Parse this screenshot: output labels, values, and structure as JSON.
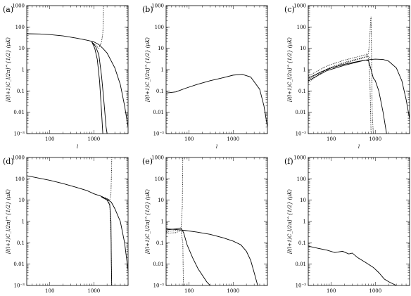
{
  "figure": {
    "panel_tags": [
      "(a)",
      "(b)",
      "(c)",
      "(d)",
      "(e)",
      "(f)"
    ]
  },
  "axes": {
    "ylabel": "[l(l+1)C_l/2π]^{1/2} (μK)",
    "xlabel": "l",
    "y_ticks": [
      "10⁻³",
      "0.01",
      "0.1",
      "1",
      "10",
      "100",
      "1000"
    ],
    "x_ticks": [
      "100",
      "1000"
    ]
  },
  "chart_data": [
    {
      "panel": "(a)",
      "type": "line",
      "xscale": "log",
      "yscale": "log",
      "xlim": [
        30,
        6000
      ],
      "ylim": [
        0.001,
        1000
      ],
      "grid": false,
      "series": [
        {
          "style": "solid",
          "x": [
            30,
            60,
            100,
            200,
            400,
            700,
            1000,
            1300,
            1600,
            2000,
            3000,
            4000,
            5000,
            6000
          ],
          "y": [
            48,
            47,
            44,
            38,
            30,
            24,
            20,
            15,
            10,
            6,
            1.2,
            0.2,
            0.02,
            0.002
          ]
        },
        {
          "style": "solid",
          "x": [
            900,
            1100,
            1300,
            1500,
            1700,
            1900,
            2000
          ],
          "y": [
            20,
            12,
            5,
            0.5,
            0.03,
            0.002,
            0.001
          ]
        },
        {
          "style": "solid",
          "x": [
            900,
            1050,
            1200,
            1350,
            1500,
            1600
          ],
          "y": [
            20,
            10,
            3,
            0.3,
            0.01,
            0.001
          ]
        },
        {
          "style": "dotted",
          "x": [
            900,
            1100,
            1300,
            1500,
            1600,
            1640,
            1660
          ],
          "y": [
            20,
            14,
            10,
            20,
            50,
            200,
            1000
          ]
        }
      ]
    },
    {
      "panel": "(b)",
      "type": "line",
      "xscale": "log",
      "yscale": "log",
      "xlim": [
        30,
        6000
      ],
      "ylim": [
        0.001,
        1000
      ],
      "grid": false,
      "series": [
        {
          "style": "solid",
          "x": [
            30,
            50,
            80,
            150,
            300,
            600,
            1000,
            1600,
            2500,
            4000,
            5000,
            6000
          ],
          "y": [
            0.08,
            0.09,
            0.13,
            0.2,
            0.3,
            0.42,
            0.55,
            0.6,
            0.45,
            0.12,
            0.02,
            0.002
          ]
        }
      ]
    },
    {
      "panel": "(c)",
      "type": "line",
      "xscale": "log",
      "yscale": "log",
      "xlim": [
        30,
        6000
      ],
      "ylim": [
        0.001,
        1000
      ],
      "grid": false,
      "series": [
        {
          "style": "solid",
          "x": [
            30,
            60,
            100,
            200,
            400,
            600,
            800,
            1000,
            1500,
            2000,
            3000,
            4000,
            5000,
            6000
          ],
          "y": [
            0.4,
            0.8,
            1.2,
            1.8,
            2.4,
            2.8,
            3.0,
            3.1,
            3.0,
            2.5,
            1.2,
            0.3,
            0.04,
            0.005
          ]
        },
        {
          "style": "solid",
          "x": [
            30,
            80,
            200,
            400,
            600,
            700,
            800,
            900,
            1000,
            1200,
            1500,
            1800
          ],
          "y": [
            0.3,
            0.9,
            1.6,
            2.3,
            2.8,
            2.6,
            1.0,
            0.4,
            0.3,
            0.1,
            0.01,
            0.001
          ]
        },
        {
          "style": "dotted",
          "x": [
            30,
            80,
            200,
            400,
            600,
            700,
            750,
            780,
            800,
            850,
            900
          ],
          "y": [
            0.25,
            1.1,
            2.2,
            3.2,
            4,
            6,
            30,
            200,
            300,
            0.01,
            0.001
          ]
        },
        {
          "style": "dotted",
          "x": [
            30,
            80,
            200,
            400,
            600,
            650,
            700,
            750,
            800
          ],
          "y": [
            0.5,
            1.5,
            2.8,
            4,
            5,
            5.5,
            3,
            0.5,
            0.001
          ]
        },
        {
          "style": "dotted",
          "x": [
            30,
            80,
            200,
            400,
            600,
            700,
            800
          ],
          "y": [
            0.35,
            1.0,
            2.0,
            3.0,
            3.8,
            4.2,
            3.5
          ]
        }
      ]
    },
    {
      "panel": "(d)",
      "type": "line",
      "xscale": "log",
      "yscale": "log",
      "xlim": [
        30,
        6000
      ],
      "ylim": [
        0.001,
        1000
      ],
      "grid": false,
      "series": [
        {
          "style": "solid",
          "x": [
            30,
            60,
            100,
            200,
            400,
            700,
            1000,
            1500,
            2000,
            2500,
            3000,
            4000,
            5000,
            6000
          ],
          "y": [
            140,
            105,
            85,
            60,
            40,
            28,
            20,
            15,
            11,
            8,
            4,
            1,
            0.1,
            0.005
          ]
        },
        {
          "style": "solid",
          "x": [
            1500,
            2000,
            2300,
            2450,
            2500,
            2550
          ],
          "y": [
            14,
            10,
            6,
            1,
            0.01,
            0.001
          ]
        },
        {
          "style": "dotted",
          "x": [
            1500,
            2000,
            2300,
            2450,
            2520,
            2560
          ],
          "y": [
            15,
            12,
            10,
            20,
            200,
            1000
          ]
        },
        {
          "style": "dotted",
          "x": [
            1500,
            2000,
            2300,
            2480,
            2540
          ],
          "y": [
            14,
            11,
            7,
            0.1,
            0.001
          ]
        }
      ]
    },
    {
      "panel": "(e)",
      "type": "line",
      "xscale": "log",
      "yscale": "log",
      "xlim": [
        30,
        6000
      ],
      "ylim": [
        0.001,
        1000
      ],
      "grid": false,
      "series": [
        {
          "style": "solid",
          "x": [
            30,
            50,
            80,
            150,
            300,
            600,
            1000,
            1500,
            2000,
            2500,
            3000,
            3600
          ],
          "y": [
            0.45,
            0.42,
            0.38,
            0.32,
            0.25,
            0.17,
            0.12,
            0.08,
            0.04,
            0.015,
            0.004,
            0.001
          ]
        },
        {
          "style": "solid",
          "x": [
            30,
            50,
            65,
            75,
            90,
            120,
            160,
            200,
            250,
            300
          ],
          "y": [
            0.4,
            0.45,
            0.5,
            0.3,
            0.08,
            0.02,
            0.006,
            0.003,
            0.0015,
            0.001
          ]
        },
        {
          "style": "dotted",
          "x": [
            30,
            50,
            60,
            66,
            70,
            72
          ],
          "y": [
            0.28,
            0.3,
            0.35,
            0.5,
            5,
            1000
          ]
        },
        {
          "style": "dotted",
          "x": [
            30,
            50,
            65,
            72,
            74
          ],
          "y": [
            0.33,
            0.38,
            0.4,
            0.1,
            0.001
          ]
        }
      ]
    },
    {
      "panel": "(f)",
      "type": "line",
      "xscale": "log",
      "yscale": "log",
      "xlim": [
        30,
        6000
      ],
      "ylim": [
        0.001,
        1000
      ],
      "grid": false,
      "series": [
        {
          "style": "solid",
          "x": [
            30,
            50,
            80,
            120,
            180,
            250,
            300,
            400,
            600,
            900,
            1200,
            1600,
            2000,
            2500,
            3000
          ],
          "y": [
            0.07,
            0.055,
            0.045,
            0.035,
            0.04,
            0.03,
            0.033,
            0.02,
            0.012,
            0.007,
            0.004,
            0.002,
            0.0015,
            0.0012,
            0.001
          ]
        }
      ]
    }
  ]
}
